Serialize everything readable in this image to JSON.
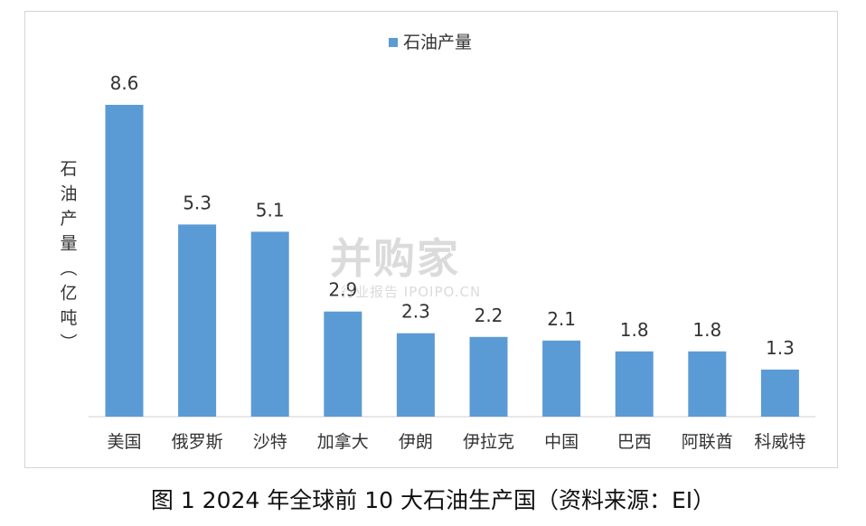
{
  "chart_data": {
    "type": "bar",
    "categories": [
      "美国",
      "俄罗斯",
      "沙特",
      "加拿大",
      "伊朗",
      "伊拉克",
      "中国",
      "巴西",
      "阿联酋",
      "科威特"
    ],
    "series": [
      {
        "name": "石油产量",
        "values": [
          8.6,
          5.3,
          5.1,
          2.9,
          2.3,
          2.2,
          2.1,
          1.8,
          1.8,
          1.3
        ]
      }
    ],
    "value_labels": [
      "8.6",
      "5.3",
      "5.1",
      "2.9",
      "2.3",
      "2.2",
      "2.1",
      "1.8",
      "1.8",
      "1.3"
    ],
    "ylabel": "石油产量（亿吨）",
    "ylim": [
      0,
      9
    ],
    "grid": false,
    "legend": "top-center",
    "bar_color": "#5b9bd5"
  },
  "caption": "图 1 2024 年全球前 10 大石油生产国（资料来源：EI）",
  "watermark": {
    "main": "并购家",
    "sub": "行业报告 IPOIPO.CN"
  }
}
